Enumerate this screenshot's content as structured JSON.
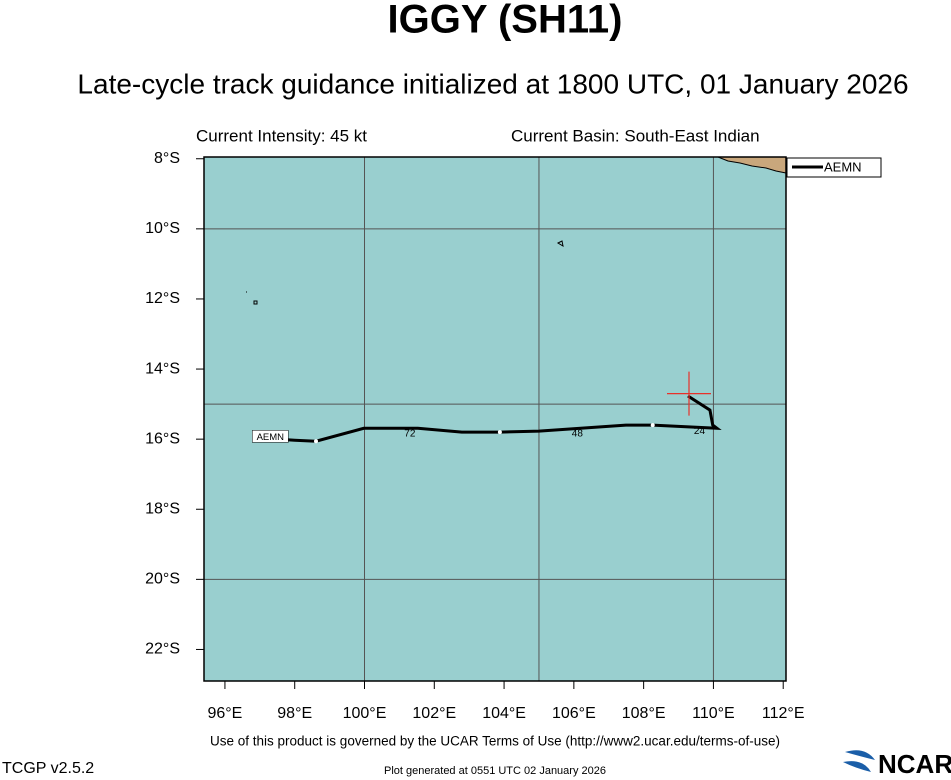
{
  "chart_data": {
    "type": "track",
    "title": "IGGY (SH11)",
    "subtitle": "Late-cycle track guidance initialized at 1800 UTC, 01 January 2026",
    "intensity_label": "Current Intensity: 45 kt",
    "basin_label": "Current Basin: South-East Indian",
    "xlim": [
      95.4,
      112.08
    ],
    "ylim": [
      -22.9,
      -7.95
    ],
    "xticks": [
      {
        "value": 96,
        "label": "96°E"
      },
      {
        "value": 98,
        "label": "98°E"
      },
      {
        "value": 100,
        "label": "100°E"
      },
      {
        "value": 102,
        "label": "102°E"
      },
      {
        "value": 104,
        "label": "104°E"
      },
      {
        "value": 106,
        "label": "106°E"
      },
      {
        "value": 108,
        "label": "108°E"
      },
      {
        "value": 110,
        "label": "110°E"
      },
      {
        "value": 112,
        "label": "112°E"
      }
    ],
    "yticks": [
      {
        "value": -8,
        "label": "8°S"
      },
      {
        "value": -10,
        "label": "10°S"
      },
      {
        "value": -12,
        "label": "12°S"
      },
      {
        "value": -14,
        "label": "14°S"
      },
      {
        "value": -16,
        "label": "16°S"
      },
      {
        "value": -18,
        "label": "18°S"
      },
      {
        "value": -20,
        "label": "20°S"
      },
      {
        "value": -22,
        "label": "22°S"
      }
    ],
    "xgrid": [
      100,
      105,
      110
    ],
    "ygrid": [
      -10,
      -15,
      -20
    ],
    "series": [
      {
        "name": "AEMN",
        "color": "#000000",
        "x": [
          109.27,
          109.9,
          109.98,
          110.1,
          108.26,
          107.49,
          105.0,
          103.88,
          102.79,
          101.53,
          99.98,
          98.61,
          98.0,
          97.06
        ],
        "values": [
          -14.77,
          -15.17,
          -15.6,
          -15.69,
          -15.6,
          -15.6,
          -15.77,
          -15.8,
          -15.8,
          -15.69,
          -15.69,
          -16.06,
          -16.03,
          -15.97
        ]
      }
    ],
    "track_points": [
      -15.6,
      -15.8,
      -16.06
    ],
    "track_points_x": [
      108.26,
      103.88,
      98.61
    ],
    "hour_labels": [
      {
        "text": "24",
        "lon": 109.6,
        "lat": -15.78
      },
      {
        "text": "48",
        "lon": 106.1,
        "lat": -15.85
      },
      {
        "text": "72",
        "lon": 101.3,
        "lat": -15.85
      }
    ],
    "track_label": {
      "text": "AEMN",
      "lon": 97.3,
      "lat": -15.92
    },
    "current_position": {
      "lon": 109.3,
      "lat": -14.7
    },
    "footer": "Use of this product is governed by the UCAR Terms of Use (http://www2.ucar.edu/terms-of-use)",
    "version": "TCGP v2.5.2",
    "generated": "Plot generated at 0551 UTC   02 January 2026",
    "logo": "NCAR"
  }
}
